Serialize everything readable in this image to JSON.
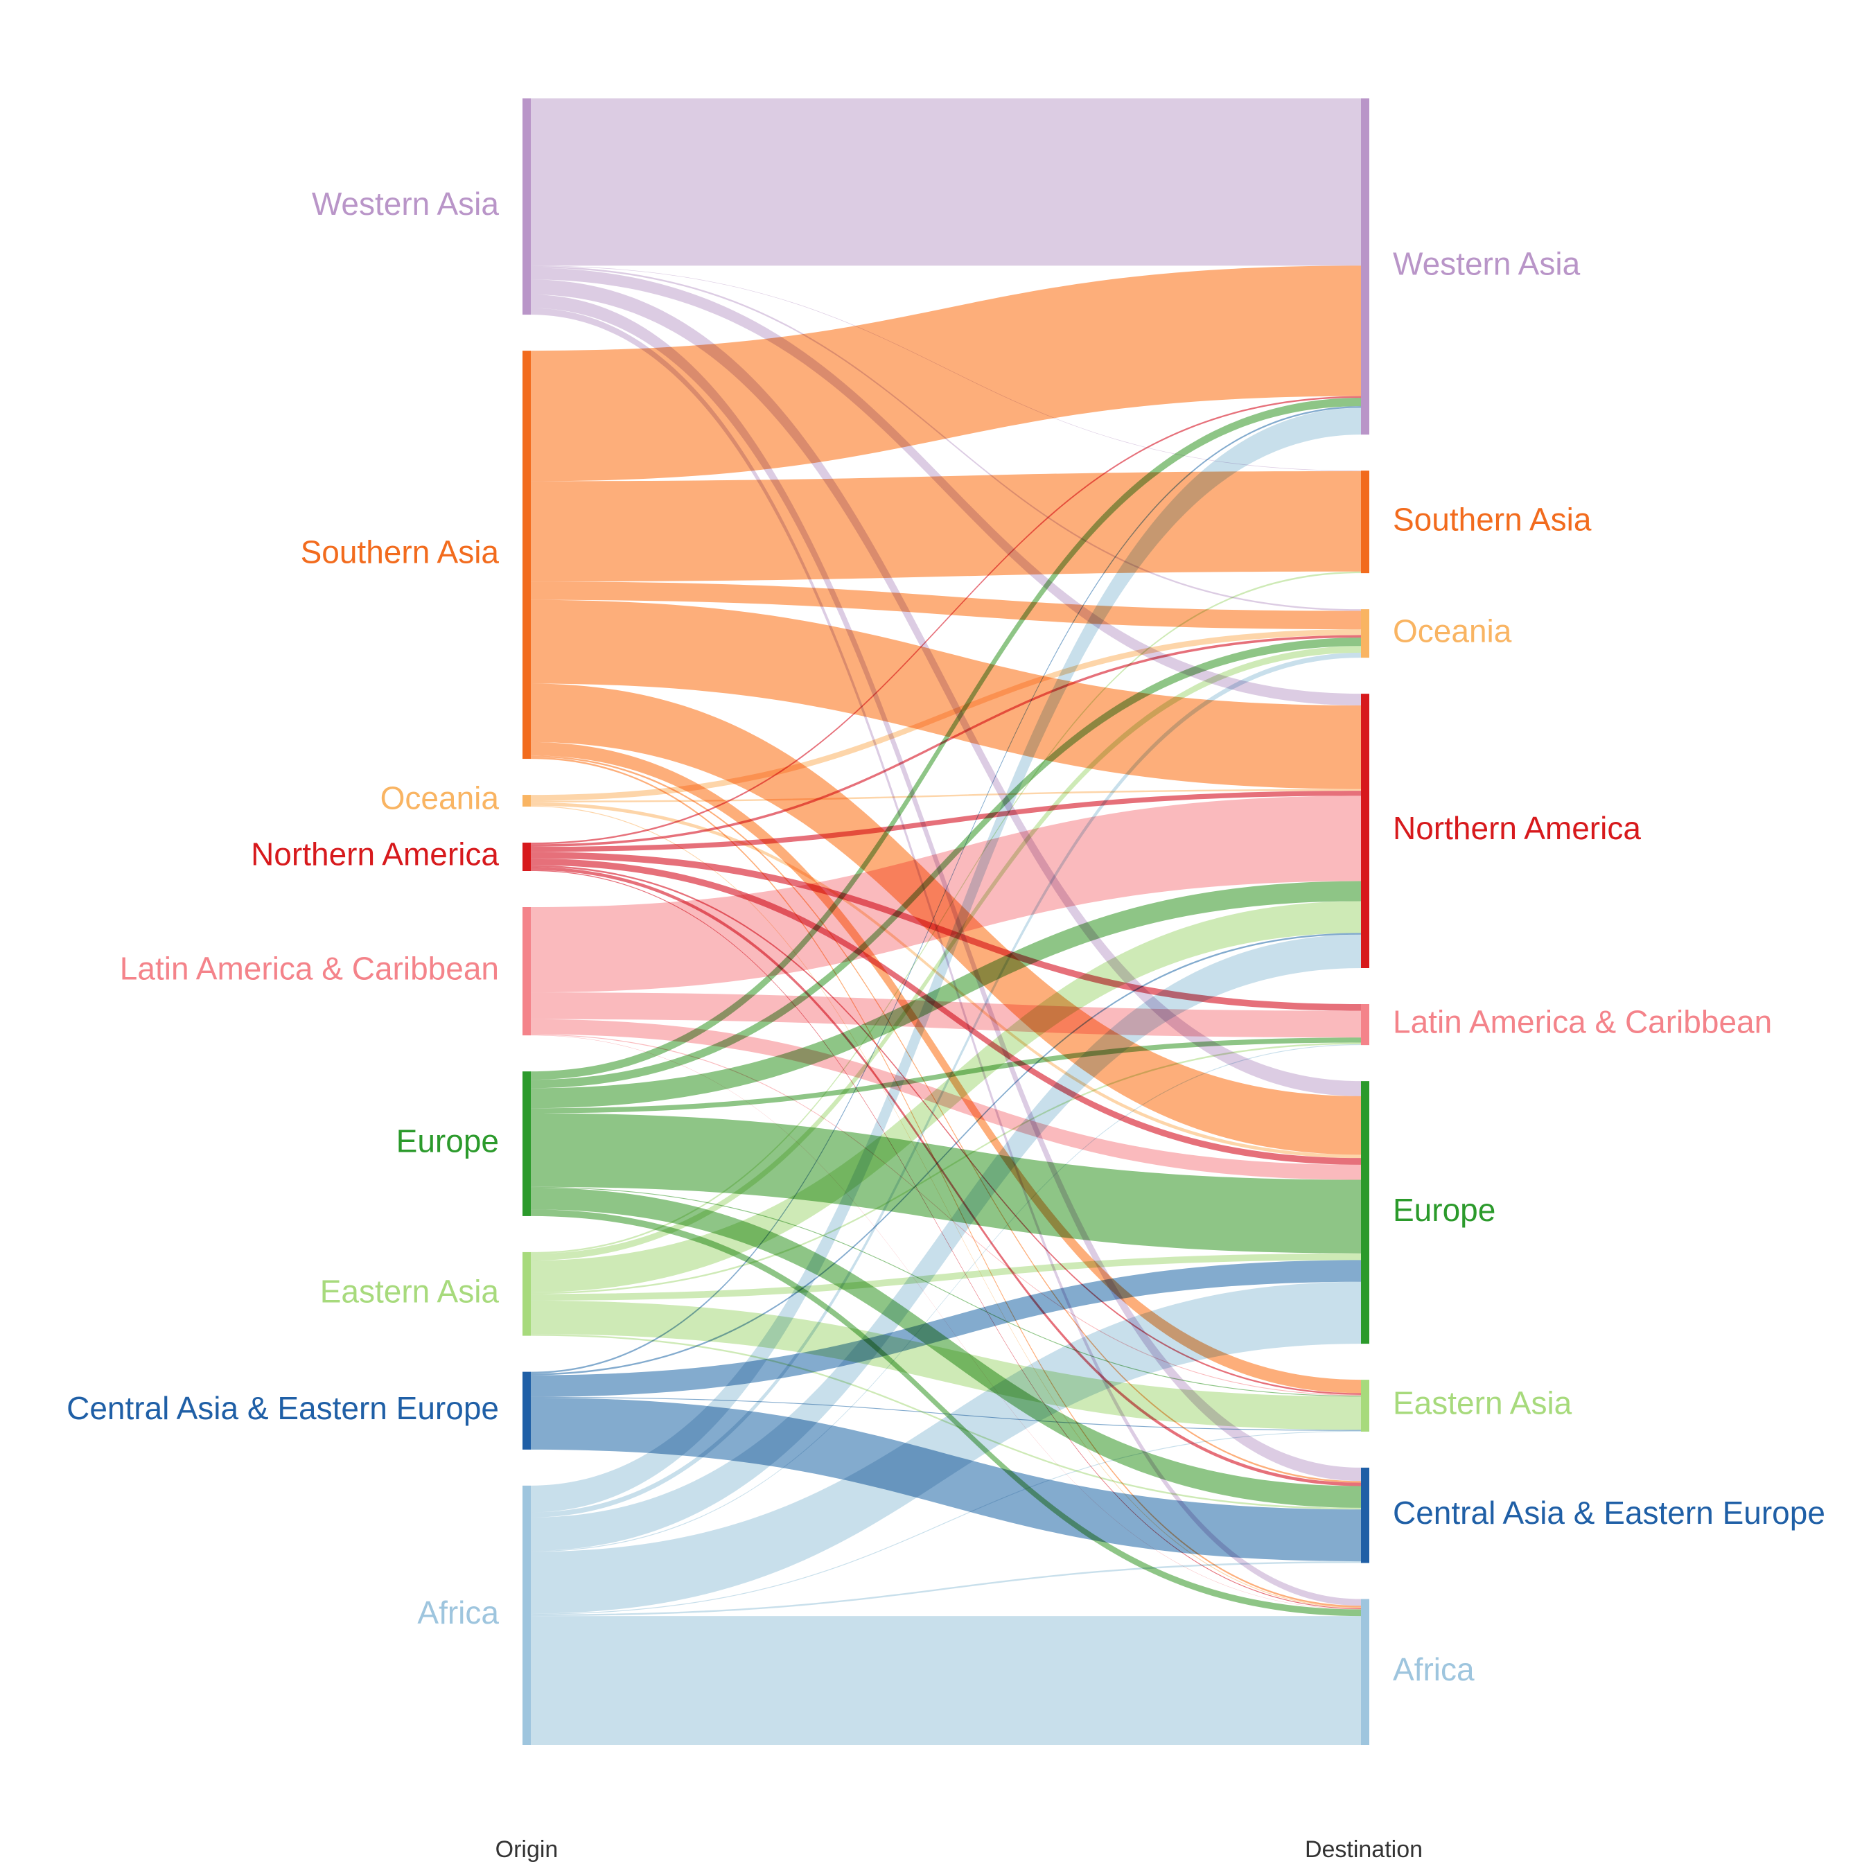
{
  "chart_data": {
    "type": "sankey",
    "axis_labels": {
      "origin": "Origin",
      "destination": "Destination"
    },
    "nodes": [
      {
        "id": "western_asia",
        "name": "Western Asia",
        "color": "#b995c8",
        "link_color": "#d8c6e0"
      },
      {
        "id": "southern_asia",
        "name": "Southern Asia",
        "color": "#f26b1d",
        "link_color": "#fda56b"
      },
      {
        "id": "oceania",
        "name": "Oceania",
        "color": "#f9b462",
        "link_color": "#fdd0a0"
      },
      {
        "id": "northern_america",
        "name": "Northern America",
        "color": "#d7191c",
        "link_color": "#e3606b"
      },
      {
        "id": "latin_america",
        "name": "Latin America & Caribbean",
        "color": "#f4838a",
        "link_color": "#f9b3b6"
      },
      {
        "id": "europe",
        "name": "Europe",
        "color": "#2b9a2b",
        "link_color": "#82bf79"
      },
      {
        "id": "eastern_asia",
        "name": "Eastern Asia",
        "color": "#a7da7c",
        "link_color": "#c9e8ae"
      },
      {
        "id": "central_asia",
        "name": "Central Asia & Eastern Europe",
        "color": "#1f5fa6",
        "link_color": "#76a2c9"
      },
      {
        "id": "africa",
        "name": "Africa",
        "color": "#9ec5de",
        "link_color": "#c2dbe9"
      }
    ],
    "flows": [
      {
        "from": "western_asia",
        "to": "western_asia",
        "value": 10.0
      },
      {
        "from": "western_asia",
        "to": "southern_asia",
        "value": 0.03
      },
      {
        "from": "western_asia",
        "to": "oceania",
        "value": 0.1
      },
      {
        "from": "western_asia",
        "to": "northern_america",
        "value": 0.7
      },
      {
        "from": "western_asia",
        "to": "europe",
        "value": 0.9
      },
      {
        "from": "western_asia",
        "to": "central_asia",
        "value": 0.8
      },
      {
        "from": "western_asia",
        "to": "africa",
        "value": 0.4
      },
      {
        "from": "southern_asia",
        "to": "western_asia",
        "value": 7.8
      },
      {
        "from": "southern_asia",
        "to": "southern_asia",
        "value": 6.0
      },
      {
        "from": "southern_asia",
        "to": "oceania",
        "value": 1.1
      },
      {
        "from": "southern_asia",
        "to": "northern_america",
        "value": 5.0
      },
      {
        "from": "southern_asia",
        "to": "europe",
        "value": 3.5
      },
      {
        "from": "southern_asia",
        "to": "eastern_asia",
        "value": 0.8
      },
      {
        "from": "southern_asia",
        "to": "central_asia",
        "value": 0.1
      },
      {
        "from": "southern_asia",
        "to": "africa",
        "value": 0.1
      },
      {
        "from": "oceania",
        "to": "oceania",
        "value": 0.35
      },
      {
        "from": "oceania",
        "to": "northern_america",
        "value": 0.1
      },
      {
        "from": "oceania",
        "to": "europe",
        "value": 0.2
      },
      {
        "from": "oceania",
        "to": "africa",
        "value": 0.05
      },
      {
        "from": "northern_america",
        "to": "western_asia",
        "value": 0.1
      },
      {
        "from": "northern_america",
        "to": "oceania",
        "value": 0.15
      },
      {
        "from": "northern_america",
        "to": "northern_america",
        "value": 0.3
      },
      {
        "from": "northern_america",
        "to": "latin_america",
        "value": 0.4
      },
      {
        "from": "northern_america",
        "to": "europe",
        "value": 0.4
      },
      {
        "from": "northern_america",
        "to": "eastern_asia",
        "value": 0.1
      },
      {
        "from": "northern_america",
        "to": "central_asia",
        "value": 0.2
      },
      {
        "from": "northern_america",
        "to": "africa",
        "value": 0.05
      },
      {
        "from": "latin_america",
        "to": "northern_america",
        "value": 5.1
      },
      {
        "from": "latin_america",
        "to": "latin_america",
        "value": 1.6
      },
      {
        "from": "latin_america",
        "to": "europe",
        "value": 0.9
      },
      {
        "from": "latin_america",
        "to": "eastern_asia",
        "value": 0.05
      },
      {
        "from": "latin_america",
        "to": "africa",
        "value": 0.02
      },
      {
        "from": "europe",
        "to": "western_asia",
        "value": 0.5
      },
      {
        "from": "europe",
        "to": "oceania",
        "value": 0.5
      },
      {
        "from": "europe",
        "to": "northern_america",
        "value": 1.2
      },
      {
        "from": "europe",
        "to": "latin_america",
        "value": 0.3
      },
      {
        "from": "europe",
        "to": "europe",
        "value": 4.4
      },
      {
        "from": "europe",
        "to": "eastern_asia",
        "value": 0.05
      },
      {
        "from": "europe",
        "to": "central_asia",
        "value": 1.3
      },
      {
        "from": "europe",
        "to": "africa",
        "value": 0.4
      },
      {
        "from": "eastern_asia",
        "to": "southern_asia",
        "value": 0.1
      },
      {
        "from": "eastern_asia",
        "to": "oceania",
        "value": 0.4
      },
      {
        "from": "eastern_asia",
        "to": "northern_america",
        "value": 1.9
      },
      {
        "from": "eastern_asia",
        "to": "latin_america",
        "value": 0.1
      },
      {
        "from": "eastern_asia",
        "to": "europe",
        "value": 0.4
      },
      {
        "from": "eastern_asia",
        "to": "eastern_asia",
        "value": 2.0
      },
      {
        "from": "eastern_asia",
        "to": "central_asia",
        "value": 0.1
      },
      {
        "from": "central_asia",
        "to": "western_asia",
        "value": 0.1
      },
      {
        "from": "central_asia",
        "to": "northern_america",
        "value": 0.1
      },
      {
        "from": "central_asia",
        "to": "europe",
        "value": 1.3
      },
      {
        "from": "central_asia",
        "to": "eastern_asia",
        "value": 0.05
      },
      {
        "from": "central_asia",
        "to": "central_asia",
        "value": 3.1
      },
      {
        "from": "africa",
        "to": "western_asia",
        "value": 1.6
      },
      {
        "from": "africa",
        "to": "oceania",
        "value": 0.3
      },
      {
        "from": "africa",
        "to": "northern_america",
        "value": 2.0
      },
      {
        "from": "africa",
        "to": "latin_america",
        "value": 0.05
      },
      {
        "from": "africa",
        "to": "europe",
        "value": 3.7
      },
      {
        "from": "africa",
        "to": "eastern_asia",
        "value": 0.05
      },
      {
        "from": "africa",
        "to": "central_asia",
        "value": 0.1
      },
      {
        "from": "africa",
        "to": "africa",
        "value": 7.7
      }
    ]
  }
}
